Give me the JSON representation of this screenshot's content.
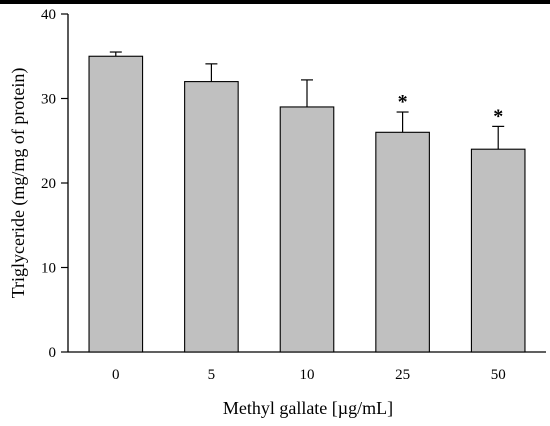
{
  "chart_data": {
    "type": "bar",
    "categories": [
      "0",
      "5",
      "10",
      "25",
      "50"
    ],
    "values": [
      35,
      32,
      29,
      26,
      24
    ],
    "errors": [
      0.5,
      2.1,
      3.2,
      2.4,
      2.7
    ],
    "significance": [
      "",
      "",
      "",
      "*",
      "*"
    ],
    "xlabel": "Methyl gallate [µg/mL]",
    "ylabel": "Triglyceride (mg/mg of protein)",
    "ylim": [
      0,
      40
    ],
    "yticks": [
      0,
      10,
      20,
      30,
      40
    ],
    "grid": false,
    "bar_color": "#c0c0c0",
    "edge_color": "#000000"
  }
}
